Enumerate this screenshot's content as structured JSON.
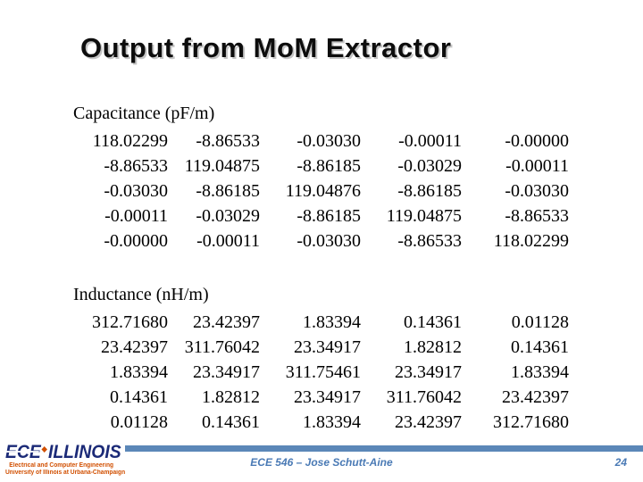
{
  "slide": {
    "title": "Output from MoM Extractor",
    "capacitance": {
      "label": "Capacitance (pF/m)",
      "rows": [
        [
          "118.02299",
          "-8.86533",
          "-0.03030",
          "-0.00011",
          "-0.00000"
        ],
        [
          "-8.86533",
          "119.04875",
          "-8.86185",
          "-0.03029",
          "-0.00011"
        ],
        [
          "-0.03030",
          "-8.86185",
          "119.04876",
          "-8.86185",
          "-0.03030"
        ],
        [
          "-0.00011",
          "-0.03029",
          "-8.86185",
          "119.04875",
          "-8.86533"
        ],
        [
          "-0.00000",
          "-0.00011",
          "-0.03030",
          "-8.86533",
          "118.02299"
        ]
      ]
    },
    "inductance": {
      "label": "Inductance (nH/m)",
      "rows": [
        [
          "312.71680",
          "23.42397",
          "1.83394",
          "0.14361",
          "0.01128"
        ],
        [
          "23.42397",
          "311.76042",
          "23.34917",
          "1.82812",
          "0.14361"
        ],
        [
          "1.83394",
          "23.34917",
          "311.75461",
          "23.34917",
          "1.83394"
        ],
        [
          "0.14361",
          "1.82812",
          "23.34917",
          "311.76042",
          "23.42397"
        ],
        [
          "0.01128",
          "0.14361",
          "1.83394",
          "23.42397",
          "312.71680"
        ]
      ]
    },
    "footer": {
      "course": "ECE 546 – Jose Schutt-Aine",
      "page_number": "24",
      "logo": {
        "ece": "ECE",
        "illinois": "ILLINOIS",
        "sub1": "Electrical and Computer Engineering",
        "sub2": "University of Illinois at Urbana-Champaign"
      }
    },
    "colors": {
      "accent_blue": "#5b87b8",
      "footer_text_blue": "#4a7ab5",
      "logo_navy": "#1b2a77",
      "logo_orange": "#d14f00"
    }
  }
}
